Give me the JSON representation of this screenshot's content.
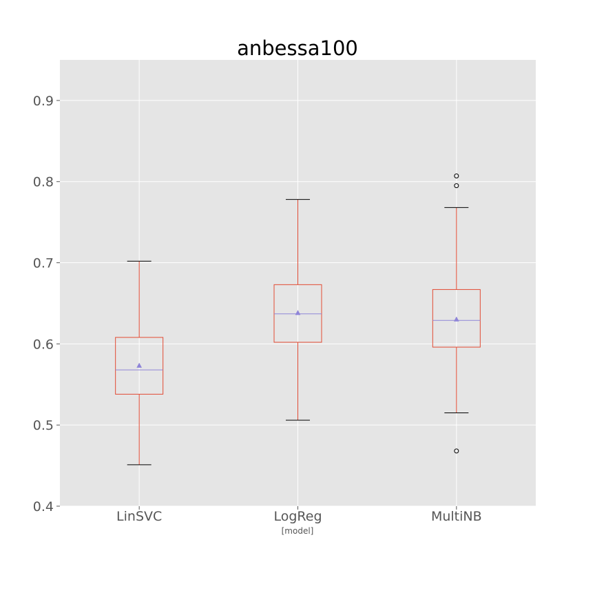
{
  "chart_data": {
    "type": "box",
    "title": "anbessa100",
    "xlabel": "[model]",
    "ylabel": "",
    "categories": [
      "LinSVC",
      "LogReg",
      "MultiNB"
    ],
    "ylim": [
      0.4,
      0.95
    ],
    "yticks": [
      0.4,
      0.5,
      0.6,
      0.7,
      0.8,
      0.9
    ],
    "ytick_labels": [
      "0.4",
      "0.5",
      "0.6",
      "0.7",
      "0.8",
      "0.9"
    ],
    "grid": true,
    "boxes": [
      {
        "name": "LinSVC",
        "whisker_low": 0.451,
        "q1": 0.538,
        "median": 0.568,
        "q3": 0.608,
        "whisker_high": 0.702,
        "mean": 0.573,
        "outliers": []
      },
      {
        "name": "LogReg",
        "whisker_low": 0.506,
        "q1": 0.602,
        "median": 0.637,
        "q3": 0.673,
        "whisker_high": 0.778,
        "mean": 0.638,
        "outliers": []
      },
      {
        "name": "MultiNB",
        "whisker_low": 0.515,
        "q1": 0.596,
        "median": 0.629,
        "q3": 0.667,
        "whisker_high": 0.768,
        "mean": 0.63,
        "outliers": [
          0.807,
          0.795,
          0.468
        ]
      }
    ],
    "colors": {
      "plot_background": "#e5e5e5",
      "grid": "#ffffff",
      "box": "#e24a33",
      "whisker": "#e24a33",
      "cap": "#000000",
      "median": "#8f85d8",
      "mean_marker": "#8f85d8",
      "text": "#555555",
      "title": "#000000"
    }
  }
}
